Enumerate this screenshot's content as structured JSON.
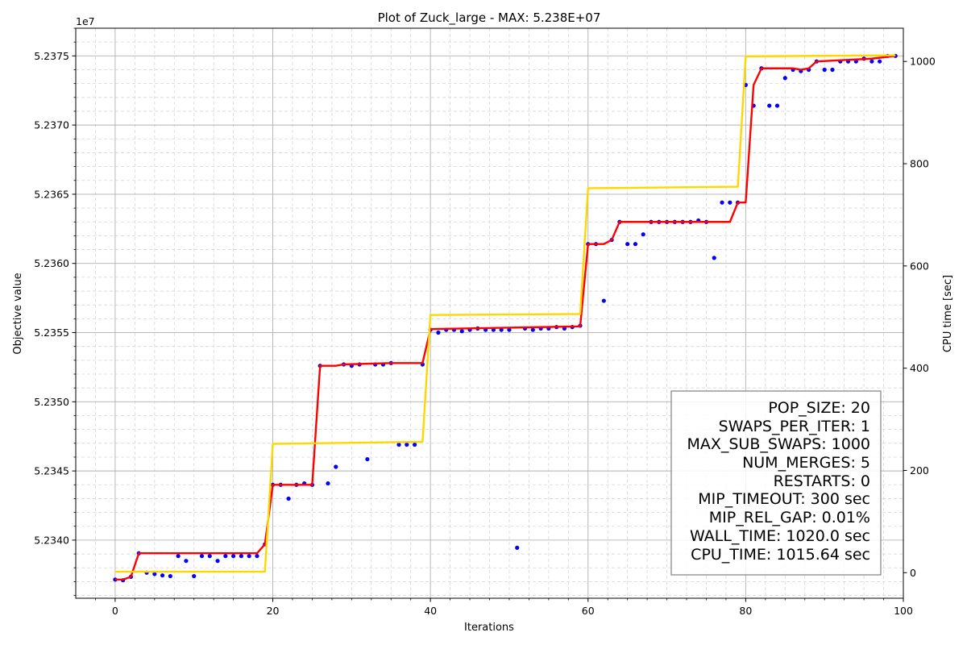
{
  "chart_data": {
    "type": "line",
    "title": "Plot of Zuck_large - MAX: 5.238E+07",
    "xlabel": "Iterations",
    "ylabel": "Objective value",
    "y2label": "CPU time [sec]",
    "y_offset_label": "1e7",
    "xlim": [
      -5,
      100
    ],
    "ylim": [
      52335.8,
      52377.0
    ],
    "y2lim": [
      -50,
      1065
    ],
    "x_ticks": [
      0,
      20,
      40,
      60,
      80,
      100
    ],
    "y_ticks": [
      52340,
      52345,
      52350,
      52355,
      52360,
      52365,
      52370,
      52375
    ],
    "y_tick_labels": [
      "5.2340",
      "5.2345",
      "5.2350",
      "5.2355",
      "5.2360",
      "5.2365",
      "5.2370",
      "5.2375"
    ],
    "y2_ticks": [
      0,
      200,
      400,
      600,
      800,
      1000
    ],
    "grid": true,
    "series": [
      {
        "kind": "scatter",
        "color": "#0000ff",
        "x": [
          0,
          1,
          2,
          3,
          4,
          5,
          6,
          7,
          8,
          9,
          10,
          11,
          12,
          13,
          14,
          15,
          16,
          17,
          18,
          19,
          20,
          21,
          22,
          23,
          24,
          25,
          26,
          27,
          28,
          29,
          30,
          31,
          32,
          33,
          34,
          35,
          36,
          37,
          38,
          39,
          40,
          41,
          42,
          43,
          44,
          45,
          46,
          47,
          48,
          49,
          50,
          51,
          52,
          53,
          54,
          55,
          56,
          57,
          58,
          59,
          60,
          61,
          62,
          63,
          64,
          65,
          66,
          67,
          68,
          69,
          70,
          71,
          72,
          73,
          74,
          75,
          76,
          77,
          78,
          79,
          80,
          81,
          82,
          83,
          84,
          85,
          86,
          87,
          88,
          89,
          90,
          91,
          92,
          93,
          94,
          95,
          96,
          97,
          98,
          99
        ],
        "y": [
          52337.15,
          52337.1,
          52337.35,
          52339.05,
          52337.65,
          52337.55,
          52337.45,
          52337.4,
          52338.85,
          52338.5,
          52337.4,
          52338.85,
          52338.85,
          52338.5,
          52338.85,
          52338.85,
          52338.85,
          52338.85,
          52338.85,
          52339.7,
          52344.0,
          52344.0,
          52343.0,
          52344.0,
          52344.1,
          52344.0,
          52352.6,
          52344.1,
          52345.3,
          52352.7,
          52352.6,
          52352.7,
          52345.85,
          52352.7,
          52352.7,
          52352.8,
          52346.9,
          52346.9,
          52346.9,
          52352.7,
          52355.2,
          52355.0,
          52355.2,
          52355.2,
          52355.1,
          52355.2,
          52355.3,
          52355.2,
          52355.2,
          52355.2,
          52355.2,
          52339.45,
          52355.3,
          52355.2,
          52355.3,
          52355.3,
          52355.4,
          52355.3,
          52355.4,
          52355.5,
          52361.4,
          52361.4,
          52357.3,
          52361.7,
          52363.0,
          52361.4,
          52361.4,
          52362.1,
          52363.0,
          52363.0,
          52363.0,
          52363.0,
          52363.0,
          52363.0,
          52363.1,
          52363.0,
          52360.4,
          52364.4,
          52364.4,
          52364.4,
          52372.9,
          52371.4,
          52374.1,
          52371.4,
          52371.4,
          52373.4,
          52374.0,
          52373.9,
          52374.0,
          52374.6,
          52374.0,
          52374.0,
          52374.6,
          52374.6,
          52374.6,
          52374.8,
          52374.6,
          52374.6,
          52375.0,
          52375.0
        ]
      },
      {
        "kind": "line",
        "color": "#ff0000",
        "x": [
          0,
          1,
          2,
          3,
          18,
          19,
          20,
          25,
          26,
          28,
          29,
          35,
          39,
          40,
          59,
          60,
          62,
          63,
          64,
          78,
          79,
          80,
          81,
          82,
          86,
          87,
          88,
          89,
          96,
          99
        ],
        "y": [
          52337.15,
          52337.15,
          52337.35,
          52339.05,
          52339.05,
          52339.7,
          52344.0,
          52344.0,
          52352.6,
          52352.6,
          52352.7,
          52352.8,
          52352.8,
          52355.25,
          52355.45,
          52361.4,
          52361.4,
          52361.7,
          52363.0,
          52363.0,
          52364.4,
          52364.4,
          52372.9,
          52374.1,
          52374.1,
          52374.0,
          52374.1,
          52374.6,
          52374.8,
          52375.0
        ]
      },
      {
        "kind": "line",
        "axis": "y2",
        "color": "#ffd700",
        "x": [
          0,
          19,
          20,
          39,
          40,
          59,
          60,
          79,
          80,
          99
        ],
        "y": [
          2,
          2,
          252,
          256,
          504,
          506,
          752,
          755,
          1010,
          1012
        ]
      }
    ],
    "info_box": [
      "POP_SIZE: 20",
      "SWAPS_PER_ITER: 1",
      "MAX_SUB_SWAPS: 1000",
      "NUM_MERGES: 5",
      "RESTARTS: 0",
      "MIP_TIMEOUT: 300 sec",
      "MIP_REL_GAP: 0.01%",
      "WALL_TIME: 1020.0 sec",
      "CPU_TIME: 1015.64 sec"
    ]
  }
}
